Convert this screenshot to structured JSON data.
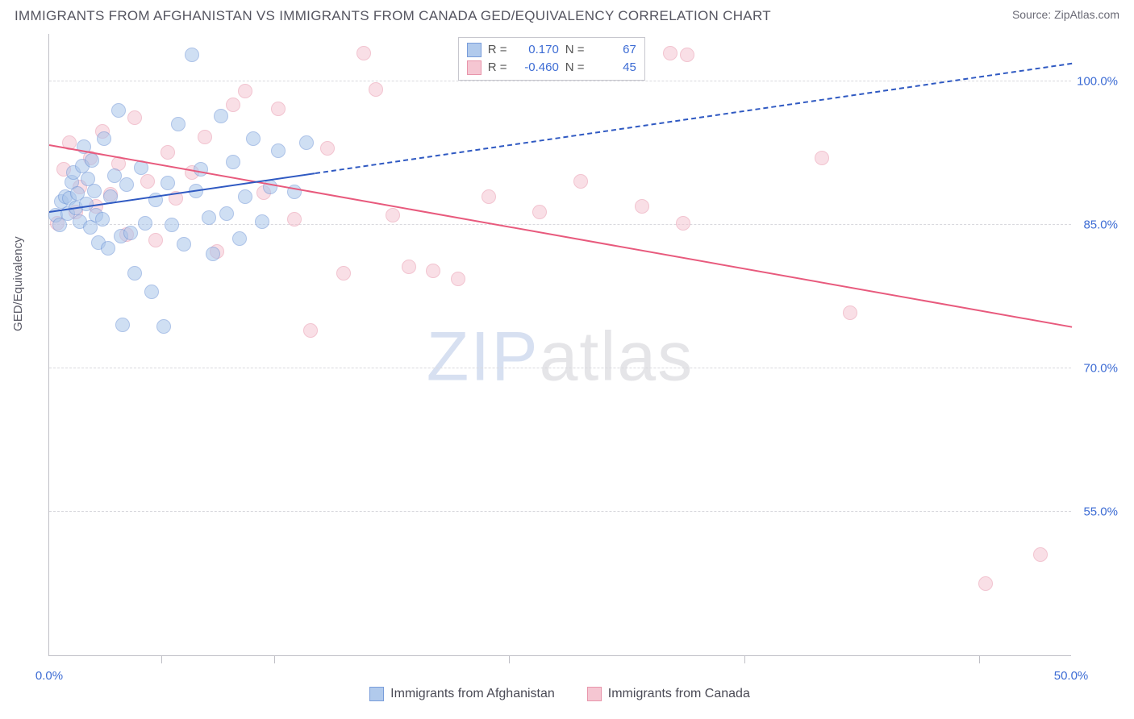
{
  "header": {
    "title": "IMMIGRANTS FROM AFGHANISTAN VS IMMIGRANTS FROM CANADA GED/EQUIVALENCY CORRELATION CHART",
    "source_prefix": "Source: ",
    "source_link": "ZipAtlas.com"
  },
  "chart": {
    "type": "scatter",
    "ylabel": "GED/Equivalency",
    "watermark_a": "ZIP",
    "watermark_b": "atlas",
    "xlim": [
      0,
      50
    ],
    "ylim": [
      40,
      105
    ],
    "x_start_label": "0.0%",
    "x_end_label": "50.0%",
    "x_tick_positions": [
      5.5,
      11,
      22.5,
      34,
      45.5
    ],
    "y_ticks": [
      {
        "v": 100,
        "label": "100.0%"
      },
      {
        "v": 85,
        "label": "85.0%"
      },
      {
        "v": 70,
        "label": "70.0%"
      },
      {
        "v": 55,
        "label": "55.0%"
      }
    ],
    "grid_color": "#d9d9de",
    "axis_color": "#bfbfc6",
    "point_radius": 9,
    "series": [
      {
        "name": "Immigrants from Afghanistan",
        "fill": "#a9c5ea",
        "fill_opacity": 0.55,
        "stroke": "#6b93d6",
        "trend_color": "#2f59c2",
        "trend_width": 2.2,
        "trend_dash_extra": true,
        "trend": {
          "x1": 0,
          "y1": 86.5,
          "x2": 50,
          "y2": 102
        },
        "trend_solid_until_x": 13,
        "stats": {
          "R": "0.170",
          "N": "67"
        },
        "points": [
          [
            0.3,
            86
          ],
          [
            0.5,
            85
          ],
          [
            0.6,
            87.5
          ],
          [
            0.8,
            88
          ],
          [
            0.9,
            86.2
          ],
          [
            1.0,
            87.8
          ],
          [
            1.1,
            89.5
          ],
          [
            1.2,
            90.5
          ],
          [
            1.3,
            86.8
          ],
          [
            1.4,
            88.3
          ],
          [
            1.5,
            85.4
          ],
          [
            1.6,
            91.2
          ],
          [
            1.7,
            93.2
          ],
          [
            1.8,
            87.2
          ],
          [
            1.9,
            89.8
          ],
          [
            2.0,
            84.8
          ],
          [
            2.1,
            91.8
          ],
          [
            2.2,
            88.6
          ],
          [
            2.3,
            86.0
          ],
          [
            2.4,
            83.2
          ],
          [
            2.6,
            85.6
          ],
          [
            2.7,
            94.0
          ],
          [
            2.9,
            82.6
          ],
          [
            3.0,
            88.0
          ],
          [
            3.2,
            90.2
          ],
          [
            3.4,
            97.0
          ],
          [
            3.5,
            83.8
          ],
          [
            3.6,
            74.6
          ],
          [
            3.8,
            89.2
          ],
          [
            4.0,
            84.2
          ],
          [
            4.2,
            80.0
          ],
          [
            4.5,
            91.0
          ],
          [
            4.7,
            85.2
          ],
          [
            5.0,
            78.0
          ],
          [
            5.2,
            87.6
          ],
          [
            5.6,
            74.4
          ],
          [
            5.8,
            89.4
          ],
          [
            6.0,
            85.0
          ],
          [
            6.3,
            95.6
          ],
          [
            6.6,
            83.0
          ],
          [
            7.0,
            102.8
          ],
          [
            7.2,
            88.6
          ],
          [
            7.4,
            90.8
          ],
          [
            7.8,
            85.8
          ],
          [
            8.0,
            82.0
          ],
          [
            8.4,
            96.4
          ],
          [
            8.7,
            86.2
          ],
          [
            9.0,
            91.6
          ],
          [
            9.3,
            83.6
          ],
          [
            9.6,
            88.0
          ],
          [
            10.0,
            94.0
          ],
          [
            10.4,
            85.4
          ],
          [
            10.8,
            89.0
          ],
          [
            11.2,
            92.8
          ],
          [
            12.0,
            88.5
          ],
          [
            12.6,
            93.6
          ]
        ]
      },
      {
        "name": "Immigrants from Canada",
        "fill": "#f4c0ce",
        "fill_opacity": 0.5,
        "stroke": "#e68aa2",
        "trend_color": "#e85a7d",
        "trend_width": 2.4,
        "trend_dash_extra": false,
        "trend": {
          "x1": 0,
          "y1": 93.5,
          "x2": 50,
          "y2": 74.5
        },
        "stats": {
          "R": "-0.460",
          "N": "45"
        },
        "points": [
          [
            0.4,
            85.2
          ],
          [
            0.7,
            90.8
          ],
          [
            1.0,
            93.6
          ],
          [
            1.3,
            86.4
          ],
          [
            1.5,
            89.0
          ],
          [
            2.0,
            92.0
          ],
          [
            2.3,
            87.0
          ],
          [
            2.6,
            94.8
          ],
          [
            3.0,
            88.2
          ],
          [
            3.4,
            91.4
          ],
          [
            3.8,
            84.0
          ],
          [
            4.2,
            96.2
          ],
          [
            4.8,
            89.6
          ],
          [
            5.2,
            83.4
          ],
          [
            5.8,
            92.6
          ],
          [
            6.2,
            87.8
          ],
          [
            7.0,
            90.5
          ],
          [
            7.6,
            94.2
          ],
          [
            8.2,
            82.2
          ],
          [
            9.0,
            97.6
          ],
          [
            9.6,
            99.0
          ],
          [
            10.5,
            88.4
          ],
          [
            11.2,
            97.2
          ],
          [
            12.0,
            85.6
          ],
          [
            12.8,
            74.0
          ],
          [
            13.6,
            93.0
          ],
          [
            14.4,
            80.0
          ],
          [
            15.4,
            103.0
          ],
          [
            16.0,
            99.2
          ],
          [
            16.8,
            86.0
          ],
          [
            17.6,
            80.6
          ],
          [
            18.8,
            80.2
          ],
          [
            20.0,
            79.4
          ],
          [
            21.5,
            88.0
          ],
          [
            24.0,
            86.4
          ],
          [
            26.0,
            89.6
          ],
          [
            29.0,
            87.0
          ],
          [
            30.4,
            103.0
          ],
          [
            31.2,
            102.8
          ],
          [
            31.0,
            85.2
          ],
          [
            37.8,
            92.0
          ],
          [
            39.2,
            75.8
          ],
          [
            45.8,
            47.5
          ],
          [
            48.5,
            50.5
          ]
        ]
      }
    ],
    "legend_heading": {
      "R": "R =",
      "N": "N ="
    }
  }
}
